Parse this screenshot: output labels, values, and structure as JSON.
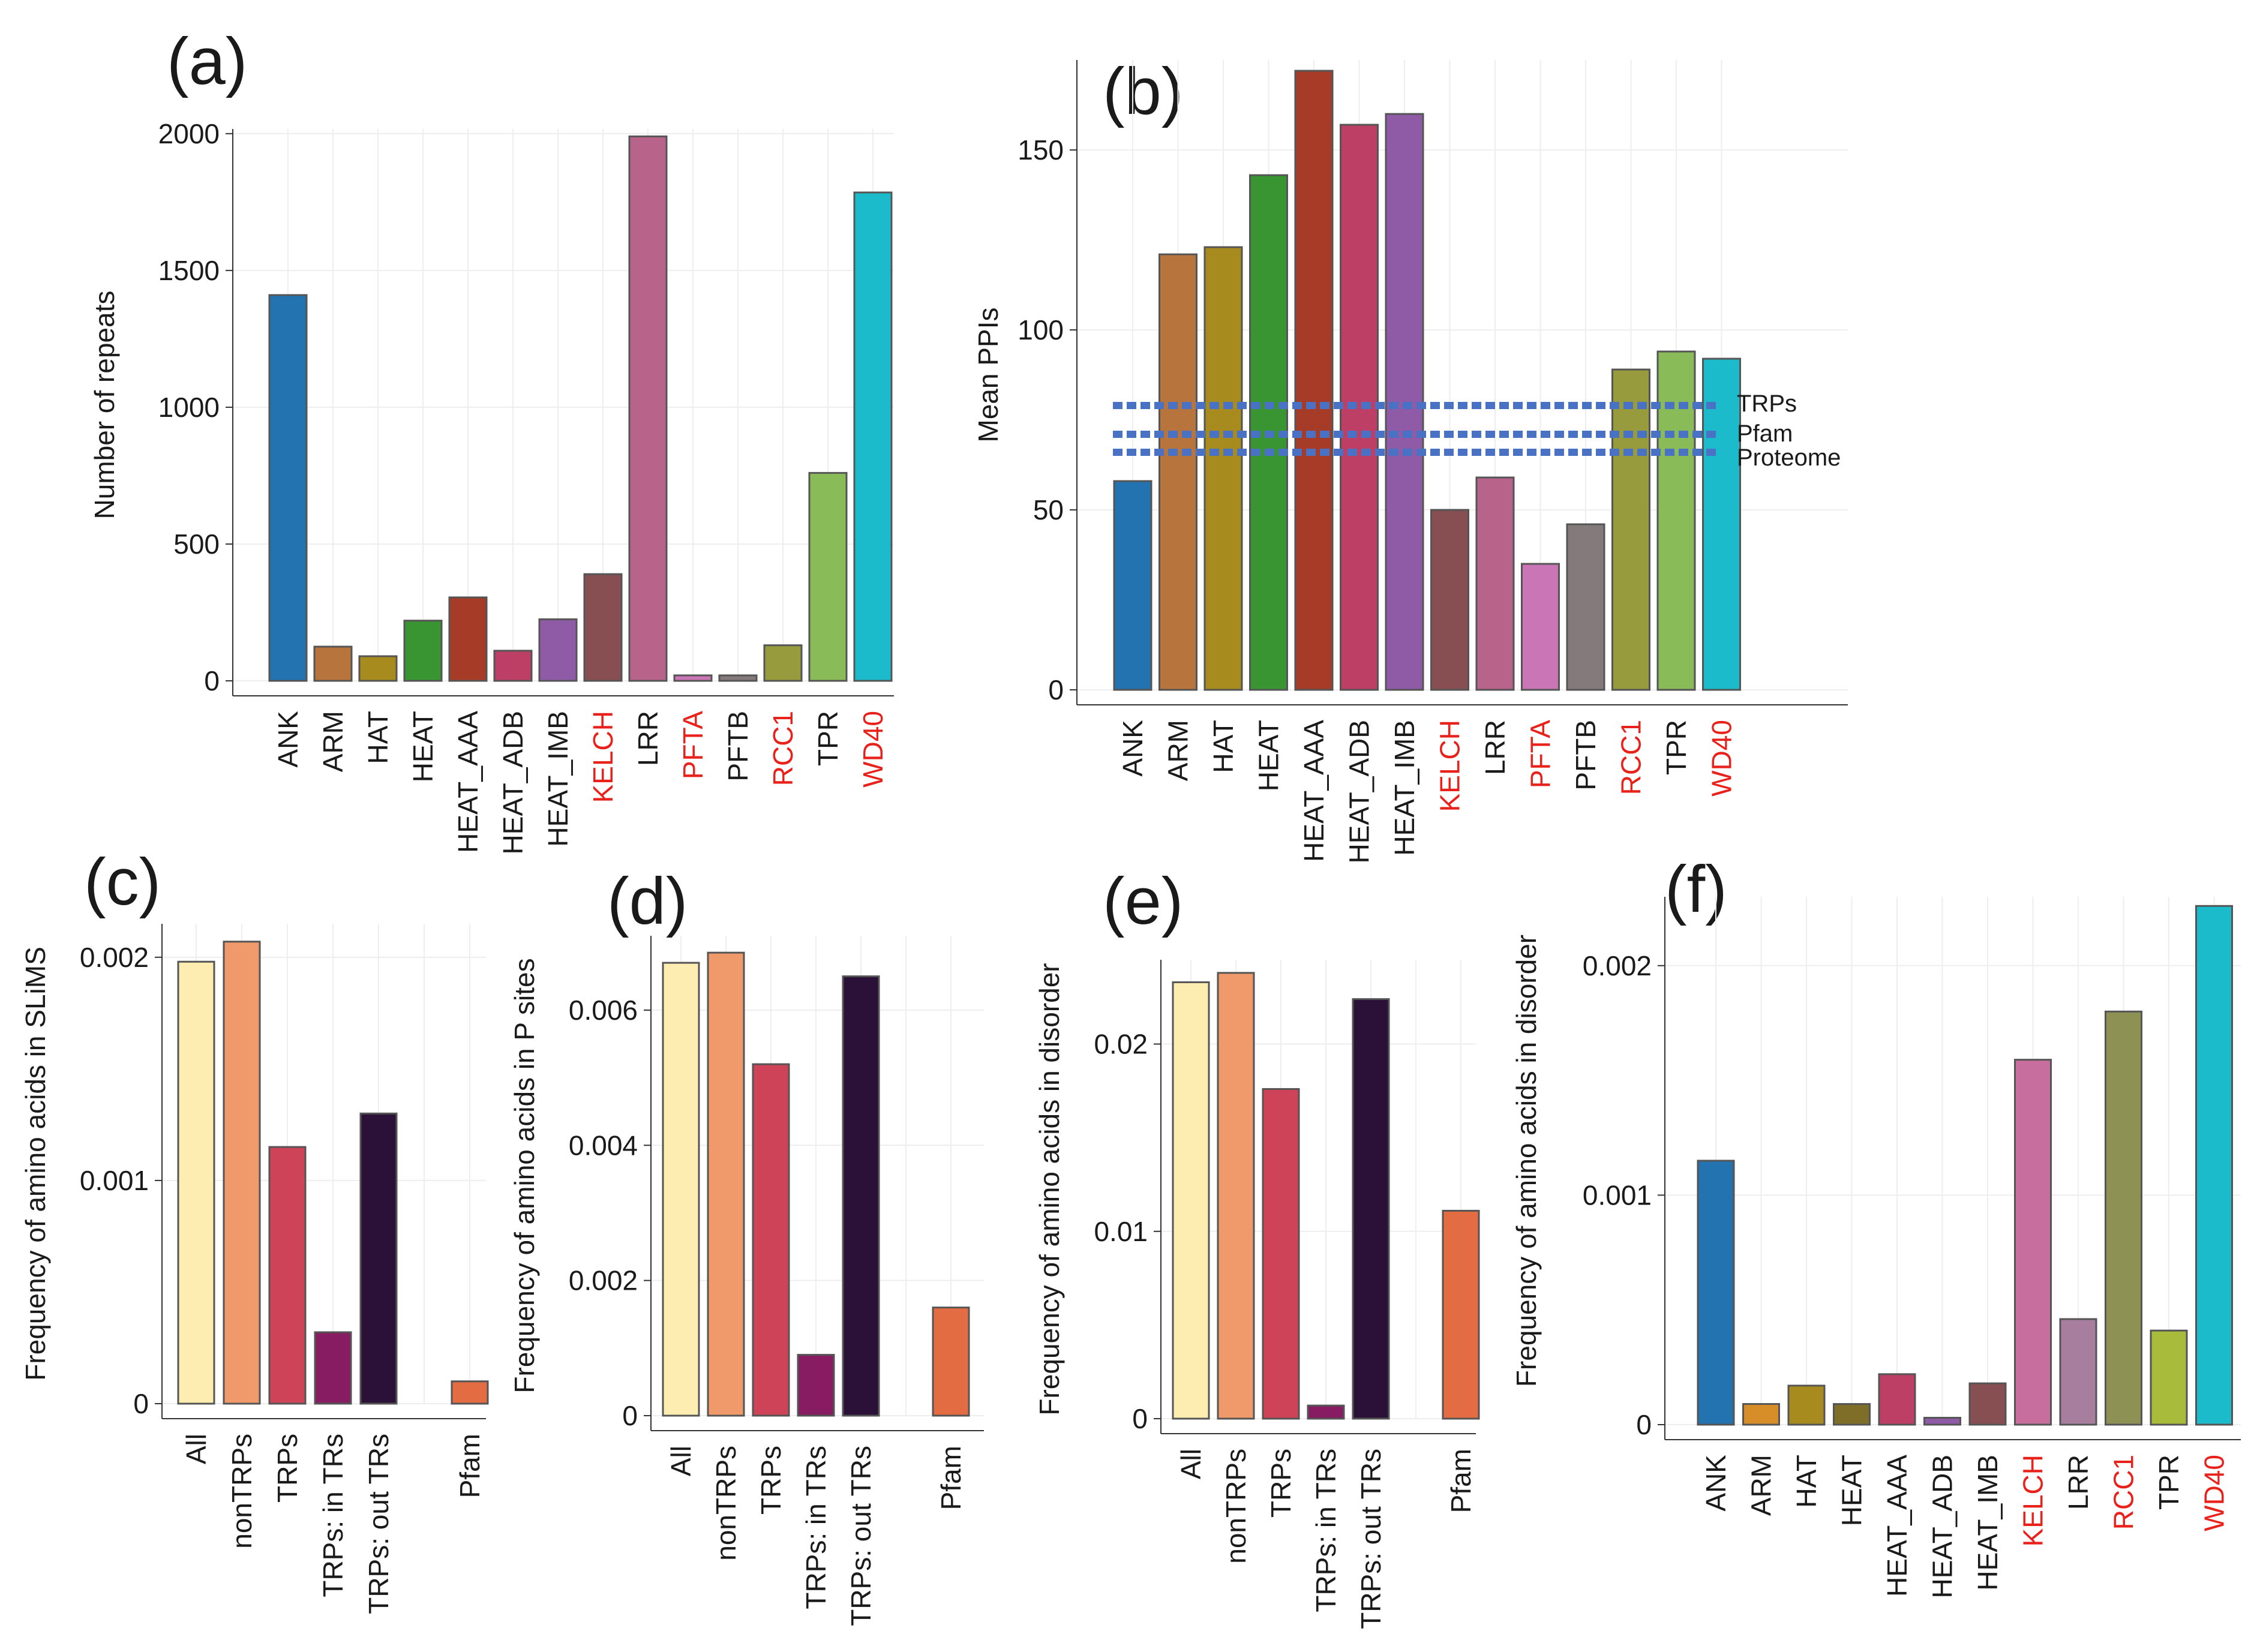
{
  "chart_data": [
    {
      "panel": "(a)",
      "type": "bar",
      "ylabel": "Number of repeats",
      "ylim": [
        0,
        2050
      ],
      "yticks": [
        0,
        500,
        1000,
        1500,
        2000
      ],
      "ytick_labels": [
        "0",
        "500",
        "1000",
        "1500",
        "2000"
      ],
      "categories": [
        "ANK",
        "ARM",
        "HAT",
        "HEAT",
        "HEAT_AAA",
        "HEAT_ADB",
        "HEAT_IMB",
        "KELCH",
        "LRR",
        "PFTA",
        "PFTB",
        "RCC1",
        "TPR",
        "WD40"
      ],
      "values": [
        1410,
        125,
        90,
        220,
        305,
        110,
        225,
        390,
        1990,
        20,
        20,
        130,
        760,
        1785
      ],
      "colors": [
        "#2273b0",
        "#b8743d",
        "#a88b1e",
        "#389532",
        "#a63b28",
        "#be3f66",
        "#8f5ba6",
        "#874f52",
        "#b8638a",
        "#c975b6",
        "#847a7c",
        "#979a3d",
        "#89bb58",
        "#1cbbcc"
      ],
      "highlight_categories": [
        "KELCH",
        "PFTA",
        "RCC1",
        "WD40"
      ],
      "highlight_color": "#e8211b"
    },
    {
      "panel": "(b)",
      "type": "bar",
      "ylabel": "Mean PPIs",
      "ylim": [
        0,
        175
      ],
      "yticks": [
        0,
        50,
        100,
        150
      ],
      "ytick_labels": [
        "0",
        "50",
        "100",
        "150"
      ],
      "categories": [
        "ANK",
        "ARM",
        "HAT",
        "HEAT",
        "HEAT_AAA",
        "HEAT_ADB",
        "HEAT_IMB",
        "KELCH",
        "LRR",
        "PFTA",
        "PFTB",
        "RCC1",
        "TPR",
        "WD40"
      ],
      "values": [
        58,
        121,
        123,
        143,
        172,
        157,
        160,
        50,
        59,
        35,
        46,
        89,
        94,
        92
      ],
      "colors": [
        "#2273b0",
        "#b8743d",
        "#a88b1e",
        "#389532",
        "#a63b28",
        "#be3f66",
        "#8f5ba6",
        "#874f52",
        "#b8638a",
        "#c975b6",
        "#847a7c",
        "#979a3d",
        "#89bb58",
        "#1cbbcc"
      ],
      "highlight_categories": [
        "KELCH",
        "PFTA",
        "RCC1",
        "WD40"
      ],
      "highlight_color": "#e8211b",
      "reference_lines": [
        {
          "label": "TRPs",
          "value": 79
        },
        {
          "label": "Pfam",
          "value": 71
        },
        {
          "label": "Proteome",
          "value": 66
        }
      ],
      "reference_color": "#4a72c4"
    },
    {
      "panel": "(c)",
      "type": "bar",
      "ylabel": "Frequency of amino acids in SLiMS",
      "ylim": [
        0,
        0.00215
      ],
      "yticks": [
        0,
        0.001,
        0.002
      ],
      "ytick_labels": [
        "0",
        "0.001",
        "0.002"
      ],
      "categories": [
        "All",
        "nonTRPs",
        "TRPs",
        "TRPs: in TRs",
        "TRPs: out TRs",
        "",
        "Pfam"
      ],
      "values": [
        0.00198,
        0.00207,
        0.00115,
        0.00032,
        0.0013,
        null,
        0.0001
      ],
      "colors": [
        "#fdedb0",
        "#f0996a",
        "#cf4358",
        "#871c62",
        "#2b1137",
        "#ffffff",
        "#e46c43"
      ]
    },
    {
      "panel": "(d)",
      "type": "bar",
      "ylabel": "Frequency of amino acids in P sites",
      "ylim": [
        0,
        0.0071
      ],
      "yticks": [
        0,
        0.002,
        0.004,
        0.006
      ],
      "ytick_labels": [
        "0",
        "0.002",
        "0.004",
        "0.006"
      ],
      "categories": [
        "All",
        "nonTRPs",
        "TRPs",
        "TRPs: in TRs",
        "TRPs: out TRs",
        "",
        "Pfam"
      ],
      "values": [
        0.0067,
        0.00685,
        0.0052,
        0.0009,
        0.0065,
        null,
        0.0016
      ],
      "colors": [
        "#fdedb0",
        "#f0996a",
        "#cf4358",
        "#871c62",
        "#2b1137",
        "#ffffff",
        "#e46c43"
      ]
    },
    {
      "panel": "(e)",
      "type": "bar",
      "ylabel": "Frequency of amino acids in disorder",
      "ylim": [
        0,
        0.0245
      ],
      "yticks": [
        0,
        0.01,
        0.02
      ],
      "ytick_labels": [
        "0",
        "0.01",
        "0.02"
      ],
      "categories": [
        "All",
        "nonTRPs",
        "TRPs",
        "TRPs: in TRs",
        "TRPs: out TRs",
        "",
        "Pfam"
      ],
      "values": [
        0.0233,
        0.0238,
        0.0176,
        0.0007,
        0.0224,
        null,
        0.0111
      ],
      "colors": [
        "#fdedb0",
        "#f0996a",
        "#cf4358",
        "#871c62",
        "#2b1137",
        "#ffffff",
        "#e46c43"
      ]
    },
    {
      "panel": "(f)",
      "type": "bar",
      "ylabel": "Frequency of amino acids in disorder",
      "ylim": [
        0,
        0.0023
      ],
      "yticks": [
        0,
        0.001,
        0.002
      ],
      "ytick_labels": [
        "0",
        "0.001",
        "0.002"
      ],
      "categories": [
        "ANK",
        "ARM",
        "HAT",
        "HEAT",
        "HEAT_AAA",
        "HEAT_ADB",
        "HEAT_IMB",
        "KELCH",
        "LRR",
        "RCC1",
        "TPR",
        "WD40"
      ],
      "values": [
        0.00115,
        9e-05,
        0.00017,
        9e-05,
        0.00022,
        3e-05,
        0.00018,
        0.00159,
        0.00046,
        0.0018,
        0.00041,
        0.00226
      ],
      "colors": [
        "#2273b0",
        "#d88e28",
        "#a88b1e",
        "#7e6e28",
        "#be3f66",
        "#8f5ba6",
        "#874f52",
        "#c76e9e",
        "#a87e9e",
        "#8d9154",
        "#a8bb3a",
        "#1cbbcc"
      ],
      "highlight_categories": [
        "KELCH",
        "RCC1",
        "WD40"
      ],
      "highlight_color": "#e8211b"
    }
  ]
}
